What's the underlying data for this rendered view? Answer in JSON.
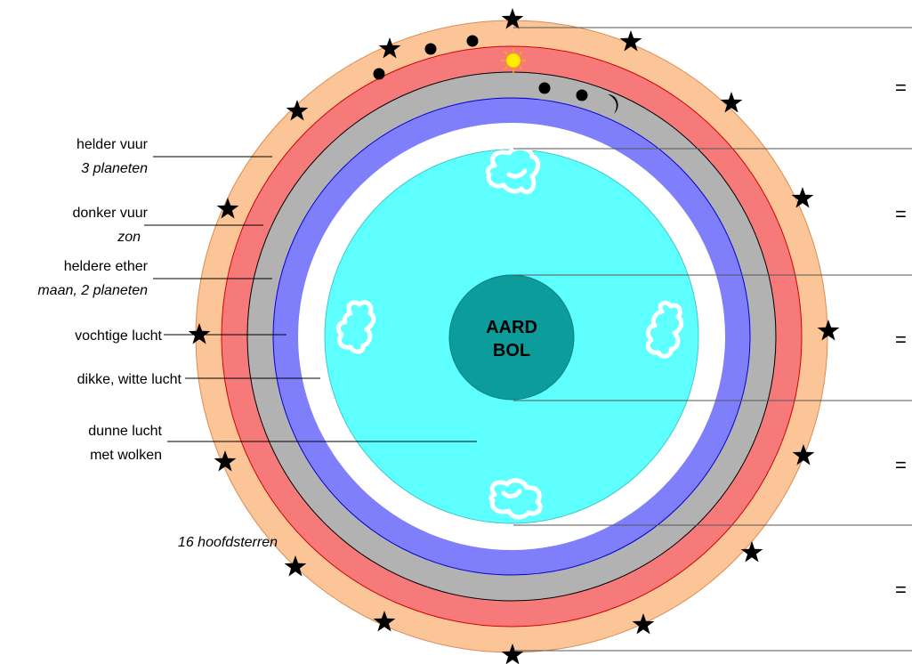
{
  "core": {
    "line1": "AARD",
    "line2": "BOL"
  },
  "layers": [
    {
      "id": "helder-vuur",
      "label": "helder vuur",
      "sub": "3 planeten",
      "color": "#fbc597"
    },
    {
      "id": "donker-vuur",
      "label": "donker vuur",
      "sub": "zon",
      "color": "#f77a7a"
    },
    {
      "id": "heldere-ether",
      "label": "heldere ether",
      "sub": "maan, 2 planeten",
      "color": "#b2b2b2"
    },
    {
      "id": "vochtige-lucht",
      "label": "vochtige lucht",
      "sub": "",
      "color": "#7f7ffb"
    },
    {
      "id": "dikke-witte-lucht",
      "label": "dikke, witte lucht",
      "sub": "",
      "color": "#ffffff"
    },
    {
      "id": "dunne-lucht",
      "label": "dunne lucht",
      "sub": "met wolken",
      "color": "#5effff"
    }
  ],
  "stars_label": "16 hoofdsterren",
  "equals_sign": "=",
  "colors": {
    "core": "#0c9c9c",
    "sun": "#ffee00",
    "star": "#000000"
  }
}
